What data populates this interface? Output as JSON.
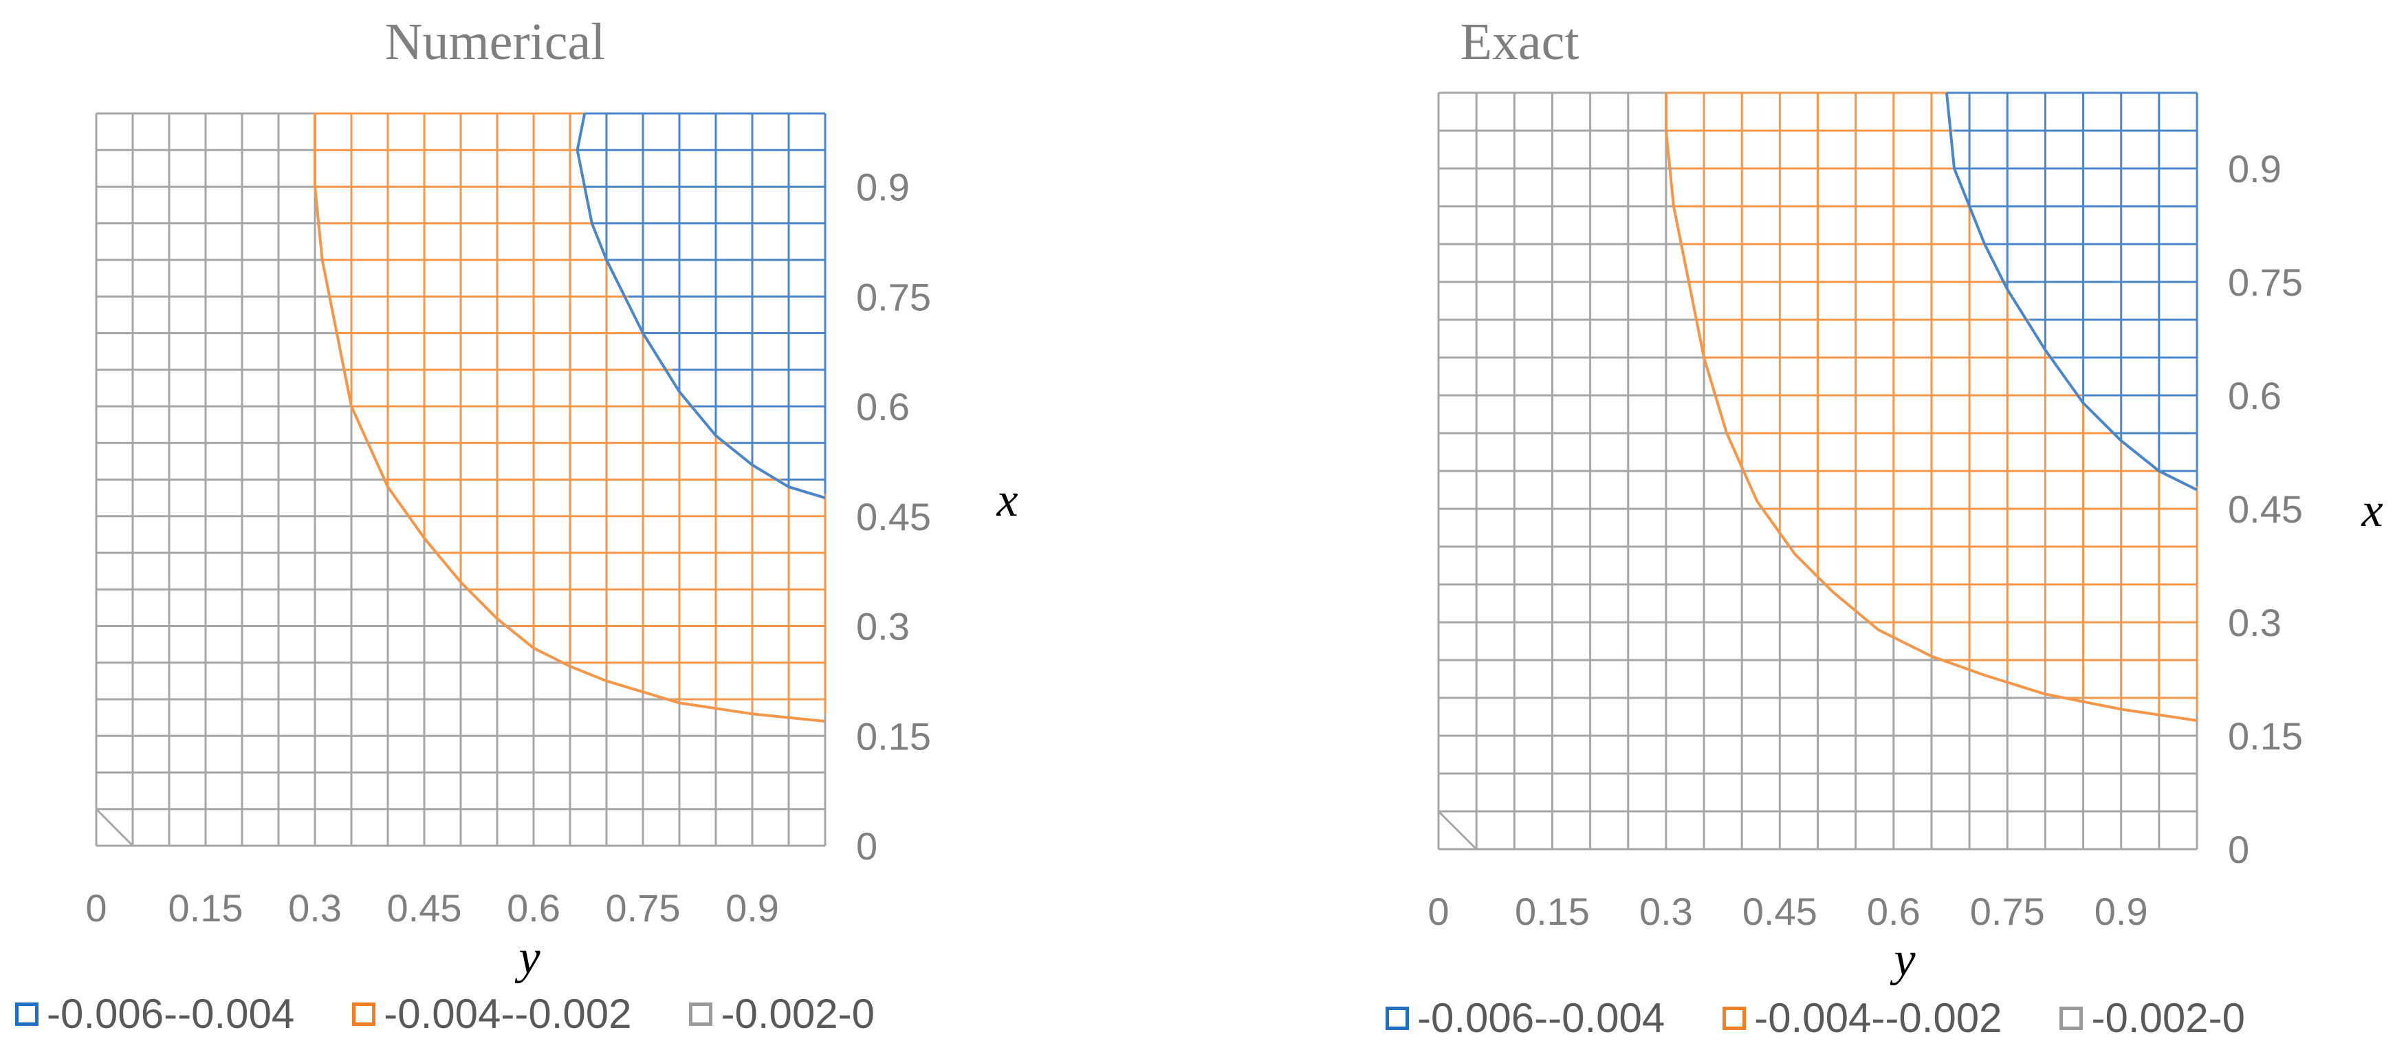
{
  "chart_data": [
    {
      "type": "contour",
      "title": "Numerical",
      "xlabel": "y",
      "ylabel": "x",
      "x_axis_variable": "y",
      "y_axis_variable": "x",
      "xlim": [
        0,
        1
      ],
      "ylim": [
        0,
        1
      ],
      "grid_step": 0.05,
      "x_ticks": [
        "0",
        "0.15",
        "0.3",
        "0.45",
        "0.6",
        "0.75",
        "0.9"
      ],
      "y_ticks": [
        "0",
        "0.15",
        "0.3",
        "0.45",
        "0.6",
        "0.75",
        "0.9"
      ],
      "legend": [
        {
          "label": "-0.006--0.004",
          "color": "#4a86c8"
        },
        {
          "label": "-0.004--0.002",
          "color": "#f5974a"
        },
        {
          "label": "-0.002-0",
          "color": "#a6a6a6"
        }
      ],
      "contours": [
        {
          "level": -0.002,
          "color": "#f5974a",
          "points": [
            [
              0.3,
              1.0
            ],
            [
              0.3,
              0.95
            ],
            [
              0.3,
              0.9
            ],
            [
              0.31,
              0.8
            ],
            [
              0.33,
              0.7
            ],
            [
              0.35,
              0.6
            ],
            [
              0.4,
              0.49
            ],
            [
              0.45,
              0.42
            ],
            [
              0.5,
              0.36
            ],
            [
              0.55,
              0.31
            ],
            [
              0.6,
              0.27
            ],
            [
              0.65,
              0.245
            ],
            [
              0.7,
              0.225
            ],
            [
              0.8,
              0.195
            ],
            [
              0.9,
              0.18
            ],
            [
              1.0,
              0.17
            ]
          ]
        },
        {
          "level": -0.004,
          "color": "#4a86c8",
          "points": [
            [
              0.67,
              1.0
            ],
            [
              0.66,
              0.95
            ],
            [
              0.68,
              0.85
            ],
            [
              0.7,
              0.8
            ],
            [
              0.75,
              0.7
            ],
            [
              0.8,
              0.62
            ],
            [
              0.85,
              0.56
            ],
            [
              0.9,
              0.52
            ],
            [
              0.95,
              0.49
            ],
            [
              1.0,
              0.475
            ]
          ]
        }
      ]
    },
    {
      "type": "contour",
      "title": "Exact",
      "xlabel": "y",
      "ylabel": "x",
      "x_axis_variable": "y",
      "y_axis_variable": "x",
      "xlim": [
        0,
        1
      ],
      "ylim": [
        0,
        1
      ],
      "grid_step": 0.05,
      "x_ticks": [
        "0",
        "0.15",
        "0.3",
        "0.45",
        "0.6",
        "0.75",
        "0.9"
      ],
      "y_ticks": [
        "0",
        "0.15",
        "0.3",
        "0.45",
        "0.6",
        "0.75",
        "0.9"
      ],
      "legend": [
        {
          "label": "-0.006--0.004",
          "color": "#4a86c8"
        },
        {
          "label": "-0.004--0.002",
          "color": "#f5974a"
        },
        {
          "label": "-0.002-0",
          "color": "#a6a6a6"
        }
      ],
      "contours": [
        {
          "level": -0.002,
          "color": "#f5974a",
          "points": [
            [
              0.3,
              1.0
            ],
            [
              0.3,
              0.95
            ],
            [
              0.31,
              0.85
            ],
            [
              0.33,
              0.75
            ],
            [
              0.35,
              0.65
            ],
            [
              0.38,
              0.55
            ],
            [
              0.42,
              0.46
            ],
            [
              0.47,
              0.39
            ],
            [
              0.52,
              0.34
            ],
            [
              0.58,
              0.29
            ],
            [
              0.65,
              0.255
            ],
            [
              0.72,
              0.23
            ],
            [
              0.8,
              0.205
            ],
            [
              0.9,
              0.185
            ],
            [
              1.0,
              0.17
            ]
          ]
        },
        {
          "level": -0.004,
          "color": "#4a86c8",
          "points": [
            [
              0.67,
              1.0
            ],
            [
              0.68,
              0.9
            ],
            [
              0.7,
              0.85
            ],
            [
              0.72,
              0.8
            ],
            [
              0.75,
              0.74
            ],
            [
              0.8,
              0.66
            ],
            [
              0.85,
              0.59
            ],
            [
              0.9,
              0.54
            ],
            [
              0.95,
              0.5
            ],
            [
              1.0,
              0.475
            ]
          ]
        }
      ]
    }
  ]
}
